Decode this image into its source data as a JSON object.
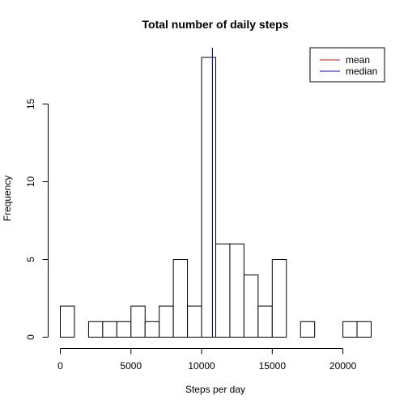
{
  "chart_data": {
    "type": "bar",
    "title": "Total number of daily steps",
    "xlabel": "Steps per day",
    "ylabel": "Frequency",
    "xlim": [
      0,
      22000
    ],
    "ylim": [
      0,
      18
    ],
    "x_ticks": [
      0,
      5000,
      10000,
      15000,
      20000
    ],
    "y_ticks": [
      0,
      5,
      10,
      15
    ],
    "bins": [
      {
        "start": 0,
        "end": 1000,
        "count": 2
      },
      {
        "start": 1000,
        "end": 2000,
        "count": 0
      },
      {
        "start": 2000,
        "end": 3000,
        "count": 1
      },
      {
        "start": 3000,
        "end": 4000,
        "count": 1
      },
      {
        "start": 4000,
        "end": 5000,
        "count": 1
      },
      {
        "start": 5000,
        "end": 6000,
        "count": 2
      },
      {
        "start": 6000,
        "end": 7000,
        "count": 1
      },
      {
        "start": 7000,
        "end": 8000,
        "count": 2
      },
      {
        "start": 8000,
        "end": 9000,
        "count": 5
      },
      {
        "start": 9000,
        "end": 10000,
        "count": 2
      },
      {
        "start": 10000,
        "end": 11000,
        "count": 18
      },
      {
        "start": 11000,
        "end": 12000,
        "count": 6
      },
      {
        "start": 12000,
        "end": 13000,
        "count": 6
      },
      {
        "start": 13000,
        "end": 14000,
        "count": 4
      },
      {
        "start": 14000,
        "end": 15000,
        "count": 2
      },
      {
        "start": 15000,
        "end": 16000,
        "count": 5
      },
      {
        "start": 16000,
        "end": 17000,
        "count": 0
      },
      {
        "start": 17000,
        "end": 18000,
        "count": 1
      },
      {
        "start": 18000,
        "end": 19000,
        "count": 0
      },
      {
        "start": 19000,
        "end": 20000,
        "count": 0
      },
      {
        "start": 20000,
        "end": 21000,
        "count": 1
      },
      {
        "start": 21000,
        "end": 22000,
        "count": 1
      }
    ],
    "reference_lines": [
      {
        "name": "mean",
        "value": 10766,
        "color": "#ff0000"
      },
      {
        "name": "median",
        "value": 10765,
        "color": "#0000ff"
      }
    ],
    "legend": {
      "placement": "top-right",
      "entries": [
        {
          "label": "mean",
          "color": "#ff0000"
        },
        {
          "label": "median",
          "color": "#0000ff"
        }
      ]
    }
  }
}
